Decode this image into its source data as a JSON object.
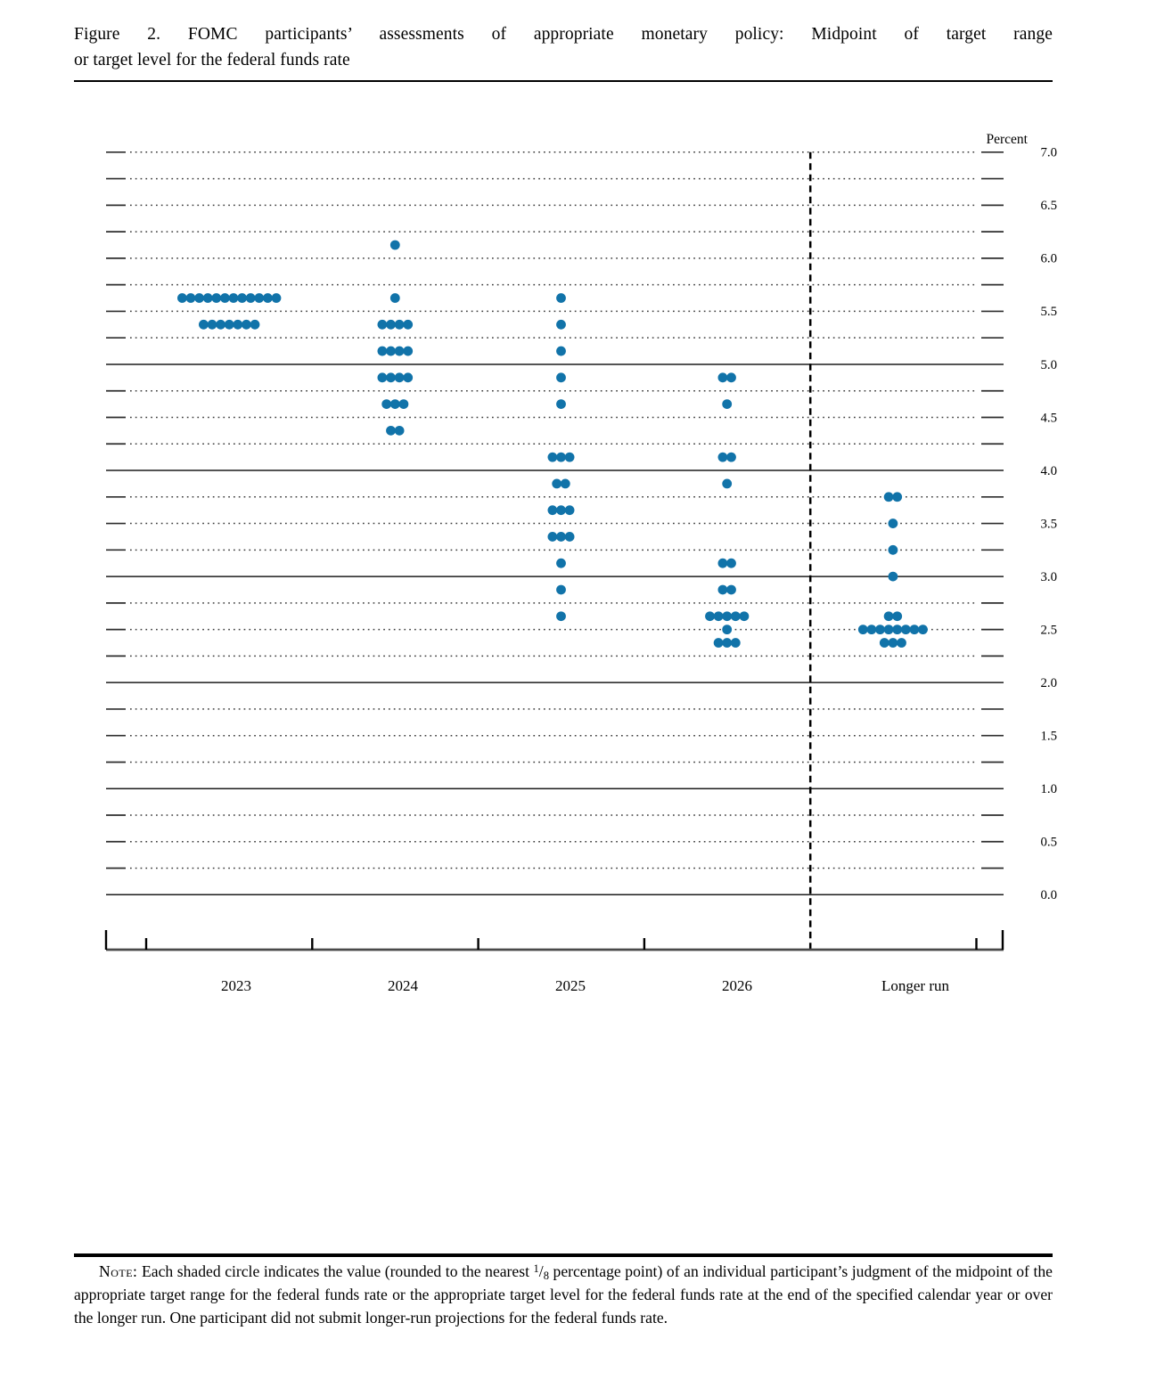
{
  "figure": {
    "label": "Figure 2.",
    "title_line1": "Figure 2.  FOMC participants’ assessments of appropriate monetary policy:  Midpoint of target range",
    "title_line2": "or target level for the federal funds rate"
  },
  "note": {
    "label": "Note:",
    "text_pre": "Each shaded circle indicates the value (rounded to the nearest ",
    "fraction": {
      "numerator": "1",
      "slash": "/",
      "denominator": "8"
    },
    "text_post": " percentage point) of an individual participant’s judgment of the midpoint of the appropriate target range for the federal funds rate or the appropriate target level for the federal funds rate at the end of the specified calendar year or over the longer run. One participant did not submit longer-run projections for the federal funds rate."
  },
  "chart_data": {
    "type": "scatter",
    "subtype": "fomc-dot-plot",
    "title": "FOMC participants’ assessments of appropriate monetary policy: Midpoint of target range or target level for the federal funds rate",
    "dot_color": "#1173a9",
    "y_axis": {
      "title": "Percent",
      "min": 0.0,
      "max": 7.0,
      "grid_step": 0.25,
      "label_step": 0.5,
      "solid_lines_at": [
        0.0,
        1.0,
        2.0,
        3.0,
        4.0,
        5.0
      ],
      "ticks": [
        {
          "v": 7.0,
          "label": "7.0"
        },
        {
          "v": 6.5,
          "label": "6.5"
        },
        {
          "v": 6.0,
          "label": "6.0"
        },
        {
          "v": 5.5,
          "label": "5.5"
        },
        {
          "v": 5.0,
          "label": "5.0"
        },
        {
          "v": 4.5,
          "label": "4.5"
        },
        {
          "v": 4.0,
          "label": "4.0"
        },
        {
          "v": 3.5,
          "label": "3.5"
        },
        {
          "v": 3.0,
          "label": "3.0"
        },
        {
          "v": 2.5,
          "label": "2.5"
        },
        {
          "v": 2.0,
          "label": "2.0"
        },
        {
          "v": 1.5,
          "label": "1.5"
        },
        {
          "v": 1.0,
          "label": "1.0"
        },
        {
          "v": 0.5,
          "label": "0.5"
        },
        {
          "v": 0.0,
          "label": "0.0"
        }
      ]
    },
    "x_axis": {
      "categories": [
        "2023",
        "2024",
        "2025",
        "2026",
        "Longer run"
      ],
      "divider_before": "Longer run",
      "divider_style": "dashed"
    },
    "series": [
      {
        "category": "2023",
        "dots": [
          {
            "rate": 5.625,
            "count": 12
          },
          {
            "rate": 5.375,
            "count": 7
          }
        ]
      },
      {
        "category": "2024",
        "dots": [
          {
            "rate": 6.125,
            "count": 1
          },
          {
            "rate": 5.625,
            "count": 1
          },
          {
            "rate": 5.375,
            "count": 4
          },
          {
            "rate": 5.125,
            "count": 4
          },
          {
            "rate": 4.875,
            "count": 4
          },
          {
            "rate": 4.625,
            "count": 3
          },
          {
            "rate": 4.375,
            "count": 2
          }
        ]
      },
      {
        "category": "2025",
        "dots": [
          {
            "rate": 5.625,
            "count": 1
          },
          {
            "rate": 5.375,
            "count": 1
          },
          {
            "rate": 5.125,
            "count": 1
          },
          {
            "rate": 4.875,
            "count": 1
          },
          {
            "rate": 4.625,
            "count": 1
          },
          {
            "rate": 4.125,
            "count": 3
          },
          {
            "rate": 3.875,
            "count": 2
          },
          {
            "rate": 3.625,
            "count": 3
          },
          {
            "rate": 3.375,
            "count": 3
          },
          {
            "rate": 3.125,
            "count": 1
          },
          {
            "rate": 2.875,
            "count": 1
          },
          {
            "rate": 2.625,
            "count": 1
          }
        ]
      },
      {
        "category": "2026",
        "dots": [
          {
            "rate": 4.875,
            "count": 2
          },
          {
            "rate": 4.625,
            "count": 1
          },
          {
            "rate": 4.125,
            "count": 2
          },
          {
            "rate": 3.875,
            "count": 1
          },
          {
            "rate": 3.125,
            "count": 2
          },
          {
            "rate": 2.875,
            "count": 2
          },
          {
            "rate": 2.625,
            "count": 5
          },
          {
            "rate": 2.5,
            "count": 1
          },
          {
            "rate": 2.375,
            "count": 3
          }
        ]
      },
      {
        "category": "Longer run",
        "dots": [
          {
            "rate": 3.75,
            "count": 2
          },
          {
            "rate": 3.5,
            "count": 1
          },
          {
            "rate": 3.25,
            "count": 1
          },
          {
            "rate": 3.0,
            "count": 1
          },
          {
            "rate": 2.625,
            "count": 2
          },
          {
            "rate": 2.5,
            "count": 8
          },
          {
            "rate": 2.375,
            "count": 3
          }
        ]
      }
    ]
  }
}
